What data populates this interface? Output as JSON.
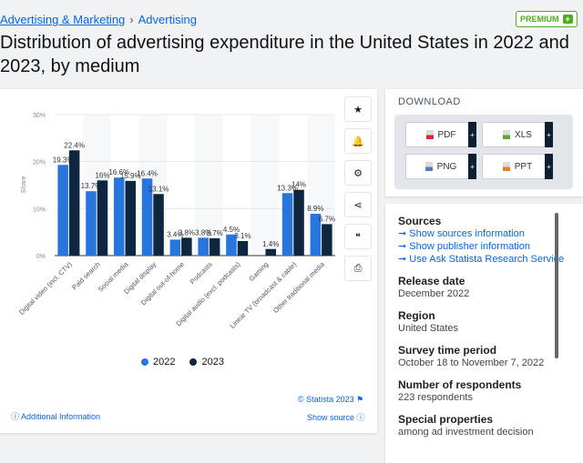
{
  "breadcrumb": {
    "items": [
      "Advertising & Marketing",
      "Advertising"
    ],
    "separator": "›"
  },
  "premium": {
    "label": "PREMIUM",
    "plus": "+"
  },
  "title": "Distribution of advertising expenditure in the United States in 2022 and 2023, by medium",
  "toolbar": [
    {
      "icon": "star-icon",
      "glyph": "★"
    },
    {
      "icon": "bell-icon",
      "glyph": "🔔"
    },
    {
      "icon": "gear-icon",
      "glyph": "⚙"
    },
    {
      "icon": "share-icon",
      "glyph": "⋖"
    },
    {
      "icon": "quote-icon",
      "glyph": "❝"
    },
    {
      "icon": "print-icon",
      "glyph": "⎙"
    }
  ],
  "chart_data": {
    "type": "bar",
    "categories": [
      "Digital video (incl. CTV)",
      "Paid search",
      "Social media",
      "Digital display",
      "Digital out-of-home",
      "Podcasts",
      "Digital audio (excl. podcasts)",
      "Gaming",
      "Linear TV (broadcast & cable)",
      "Other traditional media"
    ],
    "series": [
      {
        "name": "2022",
        "color": "#2876dd",
        "values": [
          19.3,
          13.7,
          16.6,
          16.4,
          3.4,
          3.8,
          4.5,
          null,
          13.3,
          8.9
        ],
        "labels": [
          "19.3%",
          "13.7%",
          "16.6%",
          "16.4%",
          "3.4%",
          "3.8%",
          "4.5%",
          "",
          "13.3%",
          "8.9%"
        ]
      },
      {
        "name": "2023",
        "color": "#0f2640",
        "values": [
          22.4,
          16,
          15.9,
          13.1,
          3.8,
          3.7,
          3.1,
          1.4,
          14,
          6.7
        ],
        "labels": [
          "22.4%",
          "16%",
          "15.9%",
          "13.1%",
          "3.8%",
          "3.7%",
          "3.1%",
          "1.4%",
          "14%",
          "6.7%"
        ]
      }
    ],
    "ylabel": "Share",
    "ylim": [
      0,
      30
    ],
    "yticks": [
      "0%",
      "10%",
      "20%",
      "30%"
    ],
    "grid": true,
    "legend": "bottom"
  },
  "footer": {
    "copyright": "© Statista 2023",
    "additional": "Additional Information",
    "show_source": "Show source"
  },
  "download": {
    "title": "DOWNLOAD",
    "buttons": [
      {
        "label": "PDF",
        "color": "#d32f2f"
      },
      {
        "label": "XLS",
        "color": "#5aa832"
      },
      {
        "label": "PNG",
        "color": "#4a7fc1"
      },
      {
        "label": "PPT",
        "color": "#f07d22"
      }
    ],
    "plus": "+"
  },
  "sources": {
    "title": "Sources",
    "links": [
      "Show sources information",
      "Show publisher information",
      "Use Ask Statista Research Service"
    ]
  },
  "details": [
    {
      "label": "Release date",
      "value": "December 2022"
    },
    {
      "label": "Region",
      "value": "United States"
    },
    {
      "label": "Survey time period",
      "value": "October 18 to November 7, 2022"
    },
    {
      "label": "Number of respondents",
      "value": "223 respondents"
    },
    {
      "label": "Special properties",
      "value": "among ad investment decision"
    }
  ]
}
